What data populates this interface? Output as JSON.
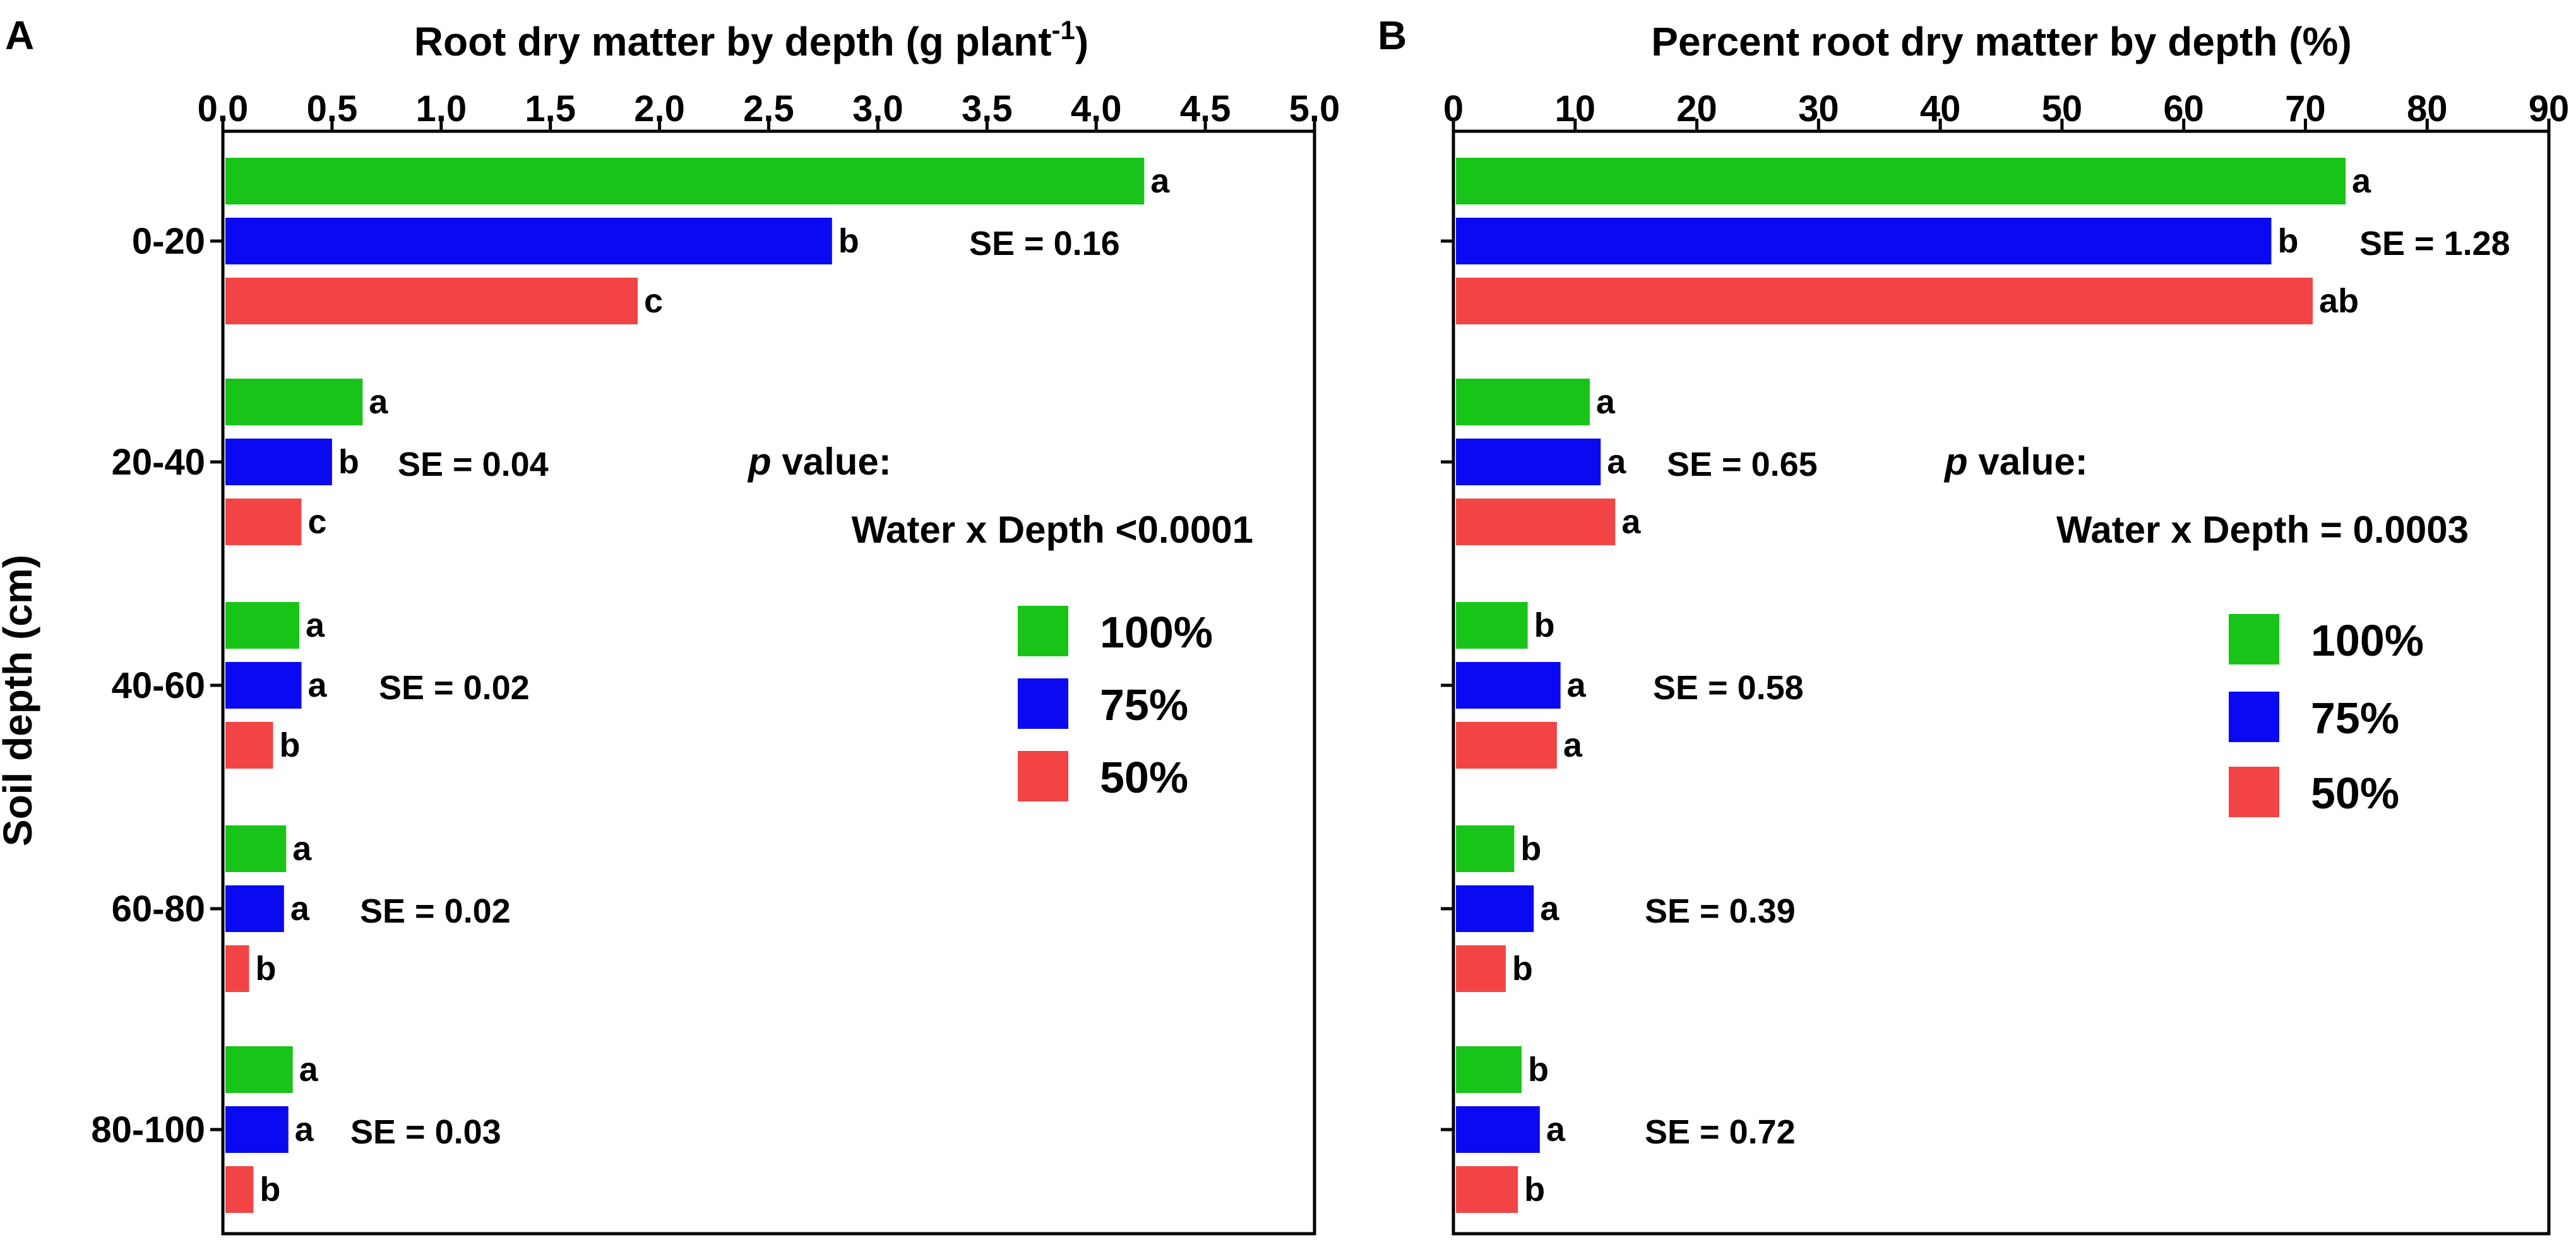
{
  "figure": {
    "y_axis_label": "Soil depth (cm)",
    "legend": [
      {
        "label": "100%",
        "color": "#17c417"
      },
      {
        "label": "75%",
        "color": "#0a0af2"
      },
      {
        "label": "50%",
        "color": "#f24444"
      }
    ]
  },
  "chart_data": [
    {
      "type": "bar",
      "orientation": "horizontal",
      "panel_letter": "A",
      "title_main": "Root dry matter by depth (g plant",
      "title_sup": "-1",
      "title_end": ")",
      "xlim": [
        0,
        5
      ],
      "ticks": [
        "0.0",
        "0.5",
        "1.0",
        "1.5",
        "2.0",
        "2.5",
        "3.0",
        "3.5",
        "4.0",
        "4.5",
        "5.0"
      ],
      "categories": [
        "0-20",
        "20-40",
        "40-60",
        "60-80",
        "80-100"
      ],
      "series": [
        {
          "name": "100%",
          "values": [
            4.22,
            0.64,
            0.35,
            0.29,
            0.32
          ],
          "letters": [
            "a",
            "a",
            "a",
            "a",
            "a"
          ]
        },
        {
          "name": "75%",
          "values": [
            2.79,
            0.5,
            0.36,
            0.28,
            0.3
          ],
          "letters": [
            "b",
            "b",
            "a",
            "a",
            "a"
          ]
        },
        {
          "name": "50%",
          "values": [
            1.9,
            0.36,
            0.23,
            0.12,
            0.14
          ],
          "letters": [
            "c",
            "c",
            "b",
            "b",
            "b"
          ]
        }
      ],
      "se": [
        "SE = 0.16",
        "SE = 0.04",
        "SE = 0.02",
        "SE = 0.02",
        "SE = 0.03"
      ],
      "p_label_italic": "p",
      "p_label_rest": " value:",
      "p_text": "Water x Depth <0.0001"
    },
    {
      "type": "bar",
      "orientation": "horizontal",
      "panel_letter": "B",
      "title_main": "Percent root dry matter by depth (%)",
      "title_sup": "",
      "title_end": "",
      "xlim": [
        0,
        90
      ],
      "ticks": [
        "0",
        "10",
        "20",
        "30",
        "40",
        "50",
        "60",
        "70",
        "80",
        "90"
      ],
      "categories": [
        "0-20",
        "20-40",
        "40-60",
        "60-80",
        "80-100"
      ],
      "series": [
        {
          "name": "100%",
          "values": [
            73.3,
            11.2,
            6.1,
            5.0,
            5.6
          ],
          "letters": [
            "a",
            "a",
            "b",
            "b",
            "b"
          ]
        },
        {
          "name": "75%",
          "values": [
            67.2,
            12.1,
            8.8,
            6.6,
            7.1
          ],
          "letters": [
            "b",
            "a",
            "a",
            "a",
            "a"
          ]
        },
        {
          "name": "50%",
          "values": [
            70.6,
            13.3,
            8.5,
            4.3,
            5.3
          ],
          "letters": [
            "ab",
            "a",
            "a",
            "b",
            "b"
          ]
        }
      ],
      "se": [
        "SE = 1.28",
        "SE = 0.65",
        "SE = 0.58",
        "SE = 0.39",
        "SE = 0.72"
      ],
      "p_label_italic": "p",
      "p_label_rest": " value:",
      "p_text": "Water x Depth = 0.0003"
    }
  ]
}
